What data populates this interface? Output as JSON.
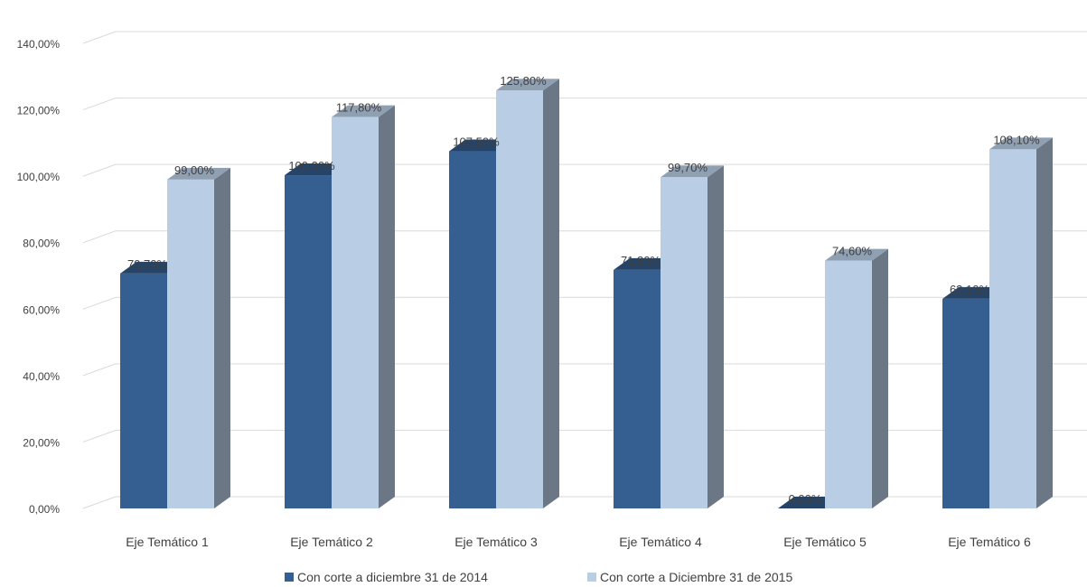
{
  "chart_data": {
    "type": "bar",
    "categories": [
      "Eje Temático 1",
      "Eje Temático 2",
      "Eje Temático 3",
      "Eje Temático 4",
      "Eje Temático 5",
      "Eje Temático 6"
    ],
    "series": [
      {
        "name": "Con corte a diciembre 31 de 2014",
        "values": [
          70.7,
          100.3,
          107.5,
          71.8,
          0.0,
          63.1
        ],
        "labels": [
          "70,70%",
          "100,30%",
          "107,50%",
          "71,80%",
          "0,00%",
          "63,10%"
        ],
        "color": "#355F91"
      },
      {
        "name": "Con corte a Diciembre 31 de 2015",
        "values": [
          99.0,
          117.8,
          125.8,
          99.7,
          74.6,
          108.1
        ],
        "labels": [
          "99,00%",
          "117,80%",
          "125,80%",
          "99,70%",
          "74,60%",
          "108,10%"
        ],
        "color": "#B9CDE5"
      }
    ],
    "yticks": [
      "0,00%",
      "20,00%",
      "40,00%",
      "60,00%",
      "80,00%",
      "100,00%",
      "120,00%",
      "140,00%"
    ],
    "ylim": [
      0,
      140
    ],
    "grid": true,
    "legend_position": "bottom",
    "three_d": true
  }
}
